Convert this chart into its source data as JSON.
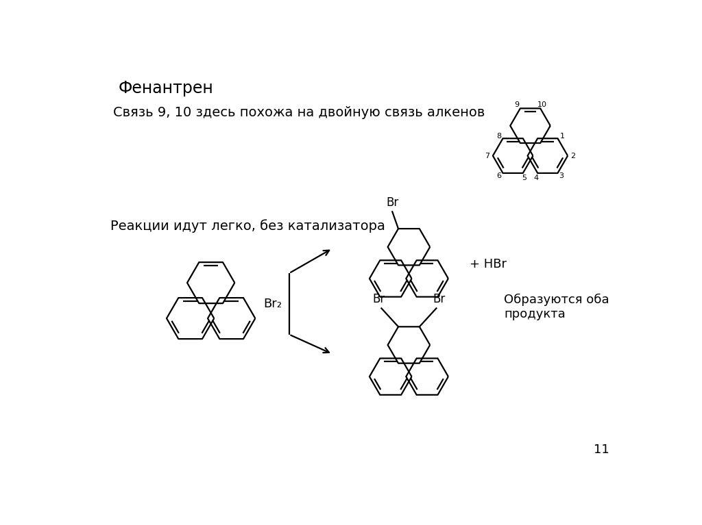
{
  "title": "Фенантрен",
  "text1": "Связь 9, 10 здесь похожа на двойную связь алкенов",
  "text2": "Реакции идут легко, без катализатора",
  "text3": "+ HBr",
  "text4": "Br₂",
  "text5": "Образуются оба\nпродукта",
  "text6": "11",
  "bg_color": "#ffffff",
  "line_color": "#000000",
  "lw": 1.6
}
